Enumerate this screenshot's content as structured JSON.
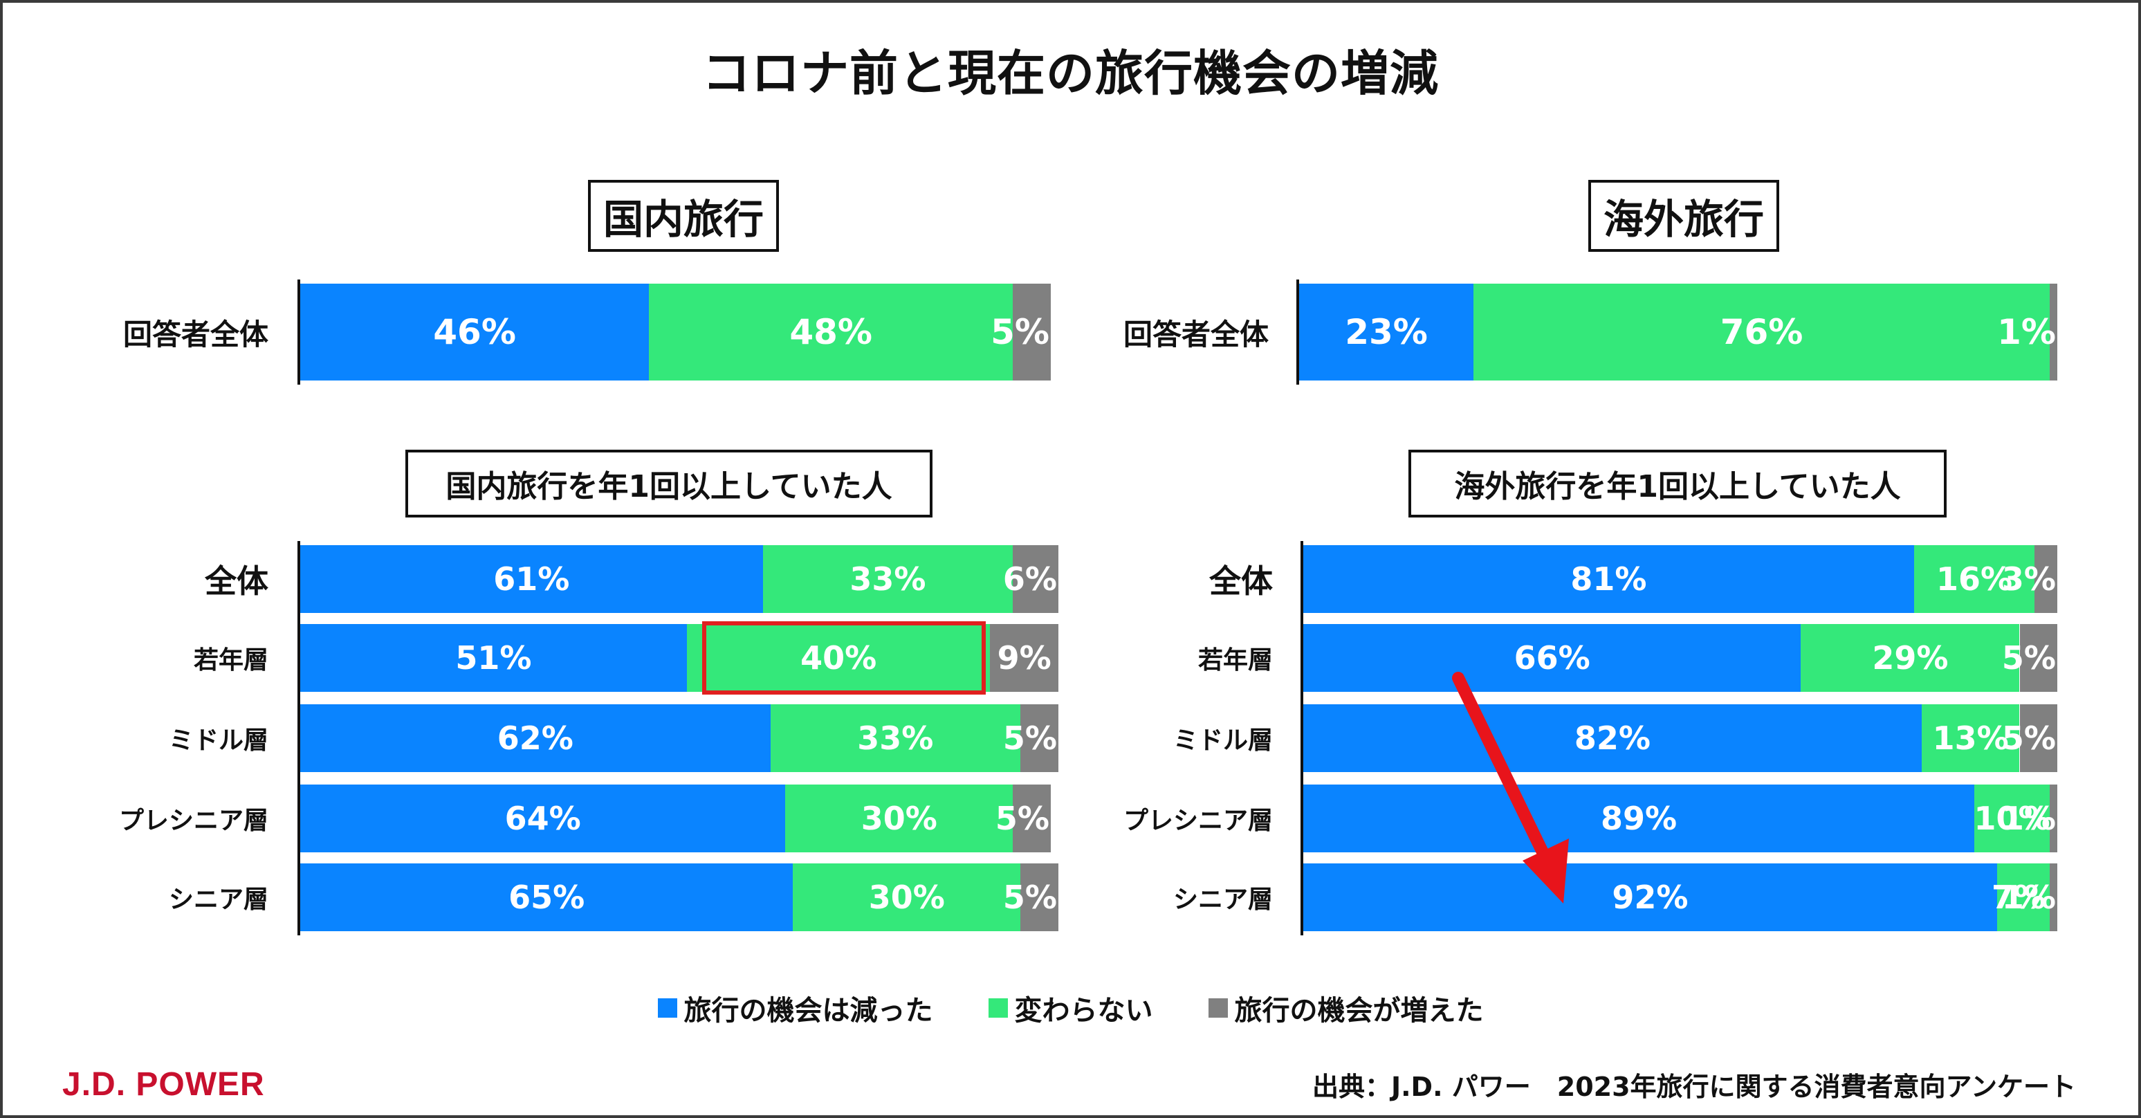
{
  "title": "コロナ前と現在の旅行機会の増減",
  "colors": {
    "decreased": "#0a84ff",
    "unchanged": "#34e87a",
    "increased": "#808080",
    "highlight": "#e0201f",
    "arrow": "#e8141b"
  },
  "legend": [
    {
      "label": "旅行の機会は減った",
      "color": "#0a84ff"
    },
    {
      "label": "変わらない",
      "color": "#34e87a"
    },
    {
      "label": "旅行の機会が増えた",
      "color": "#808080"
    }
  ],
  "brand": "J.D. POWER",
  "source": "出典：J.D. パワー　2023年旅行に関する消費者意向アンケート",
  "chart_data": [
    {
      "type": "bar",
      "stacked": true,
      "orientation": "horizontal",
      "xlim": [
        0,
        100
      ],
      "section": "国内旅行",
      "categories": [
        "回答者全体"
      ],
      "series": [
        {
          "name": "旅行の機会は減った",
          "values": [
            46
          ]
        },
        {
          "name": "変わらない",
          "values": [
            48
          ]
        },
        {
          "name": "旅行の機会が増えた",
          "values": [
            5
          ]
        }
      ]
    },
    {
      "type": "bar",
      "stacked": true,
      "orientation": "horizontal",
      "xlim": [
        0,
        100
      ],
      "section": "海外旅行",
      "categories": [
        "回答者全体"
      ],
      "series": [
        {
          "name": "旅行の機会は減った",
          "values": [
            23
          ]
        },
        {
          "name": "変わらない",
          "values": [
            76
          ]
        },
        {
          "name": "旅行の機会が増えた",
          "values": [
            1
          ]
        }
      ]
    },
    {
      "type": "bar",
      "stacked": true,
      "orientation": "horizontal",
      "xlim": [
        0,
        100
      ],
      "subtitle": "国内旅行を年1回以上していた人",
      "categories": [
        "全体",
        "若年層",
        "ミドル層",
        "プレシニア層",
        "シニア層"
      ],
      "series": [
        {
          "name": "旅行の機会は減った",
          "values": [
            61,
            51,
            62,
            64,
            65
          ]
        },
        {
          "name": "変わらない",
          "values": [
            33,
            40,
            33,
            30,
            30
          ]
        },
        {
          "name": "旅行の機会が増えた",
          "values": [
            6,
            9,
            5,
            5,
            5
          ]
        }
      ],
      "highlight": {
        "category": "若年層",
        "series": "変わらない"
      }
    },
    {
      "type": "bar",
      "stacked": true,
      "orientation": "horizontal",
      "xlim": [
        0,
        100
      ],
      "subtitle": "海外旅行を年1回以上していた人",
      "categories": [
        "全体",
        "若年層",
        "ミドル層",
        "プレシニア層",
        "シニア層"
      ],
      "series": [
        {
          "name": "旅行の機会は減った",
          "values": [
            81,
            66,
            82,
            89,
            92
          ]
        },
        {
          "name": "変わらない",
          "values": [
            16,
            29,
            13,
            10,
            7
          ]
        },
        {
          "name": "旅行の機会が増えた",
          "values": [
            3,
            5,
            5,
            1,
            1
          ]
        }
      ],
      "arrow": {
        "from": "若年層",
        "to": "シニア層"
      }
    }
  ]
}
